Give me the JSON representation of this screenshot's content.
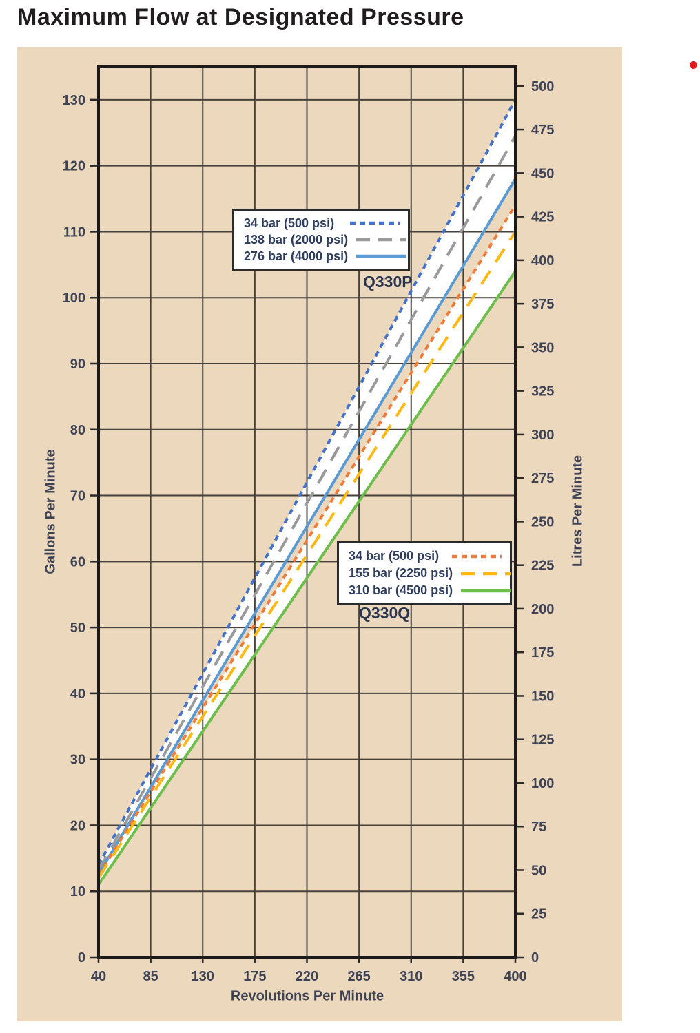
{
  "page_title": "Maximum Flow at Designated Pressure",
  "decoration": {
    "red_dot_color": "#e3151d"
  },
  "chart_data": {
    "type": "line",
    "title": "Maximum Flow at Designated Pressure",
    "xlabel": "Revolutions Per Minute",
    "ylabel_left": "Gallons Per Minute",
    "ylabel_right": "Litres Per Minute",
    "xlim": [
      40,
      400
    ],
    "x_ticks": [
      40,
      85,
      130,
      175,
      220,
      265,
      310,
      355,
      400
    ],
    "ylim_left": [
      0,
      135
    ],
    "y_ticks_left": [
      0,
      10,
      20,
      30,
      40,
      50,
      60,
      70,
      80,
      90,
      100,
      110,
      120,
      130
    ],
    "ylim_right": [
      0,
      511
    ],
    "y_ticks_right": [
      0,
      25,
      50,
      75,
      100,
      125,
      150,
      175,
      200,
      225,
      250,
      275,
      300,
      325,
      350,
      375,
      400,
      425,
      450,
      475,
      500
    ],
    "grid": true,
    "colors": {
      "panel_background": "#ecd8bd",
      "grid": "#46413a",
      "border": "#1a1a1a",
      "band_fill": "#ffffff",
      "tick_text": "#3d4254"
    },
    "series": [
      {
        "group": "Q330P",
        "name": "34 bar (500 psi)",
        "color": "#4472c8",
        "dash": "short",
        "x": [
          40,
          400
        ],
        "values": [
          14,
          130
        ]
      },
      {
        "group": "Q330P",
        "name": "138 bar (2000 psi)",
        "color": "#9a9a9a",
        "dash": "long",
        "x": [
          40,
          400
        ],
        "values": [
          13.2,
          124.5
        ]
      },
      {
        "group": "Q330P",
        "name": "276 bar (4000 psi)",
        "color": "#5b9bd5",
        "dash": "solid",
        "x": [
          40,
          400
        ],
        "values": [
          12.6,
          118
        ]
      },
      {
        "group": "Q330Q",
        "name": "34 bar (500 psi)",
        "color": "#ef7b3a",
        "dash": "short",
        "x": [
          40,
          400
        ],
        "values": [
          12.4,
          114
        ]
      },
      {
        "group": "Q330Q",
        "name": "155 bar (2250 psi)",
        "color": "#fdb913",
        "dash": "long",
        "x": [
          40,
          400
        ],
        "values": [
          12,
          110
        ]
      },
      {
        "group": "Q330Q",
        "name": "310 bar (4500 psi)",
        "color": "#6dbe4b",
        "dash": "solid",
        "x": [
          40,
          400
        ],
        "values": [
          11,
          104
        ]
      }
    ],
    "bands": [
      {
        "top": 0,
        "bottom": 2
      },
      {
        "top": 3,
        "bottom": 5
      }
    ],
    "legends": [
      {
        "label": "Q330P",
        "items": [
          0,
          1,
          2
        ]
      },
      {
        "label": "Q330Q",
        "items": [
          3,
          4,
          5
        ]
      }
    ]
  }
}
